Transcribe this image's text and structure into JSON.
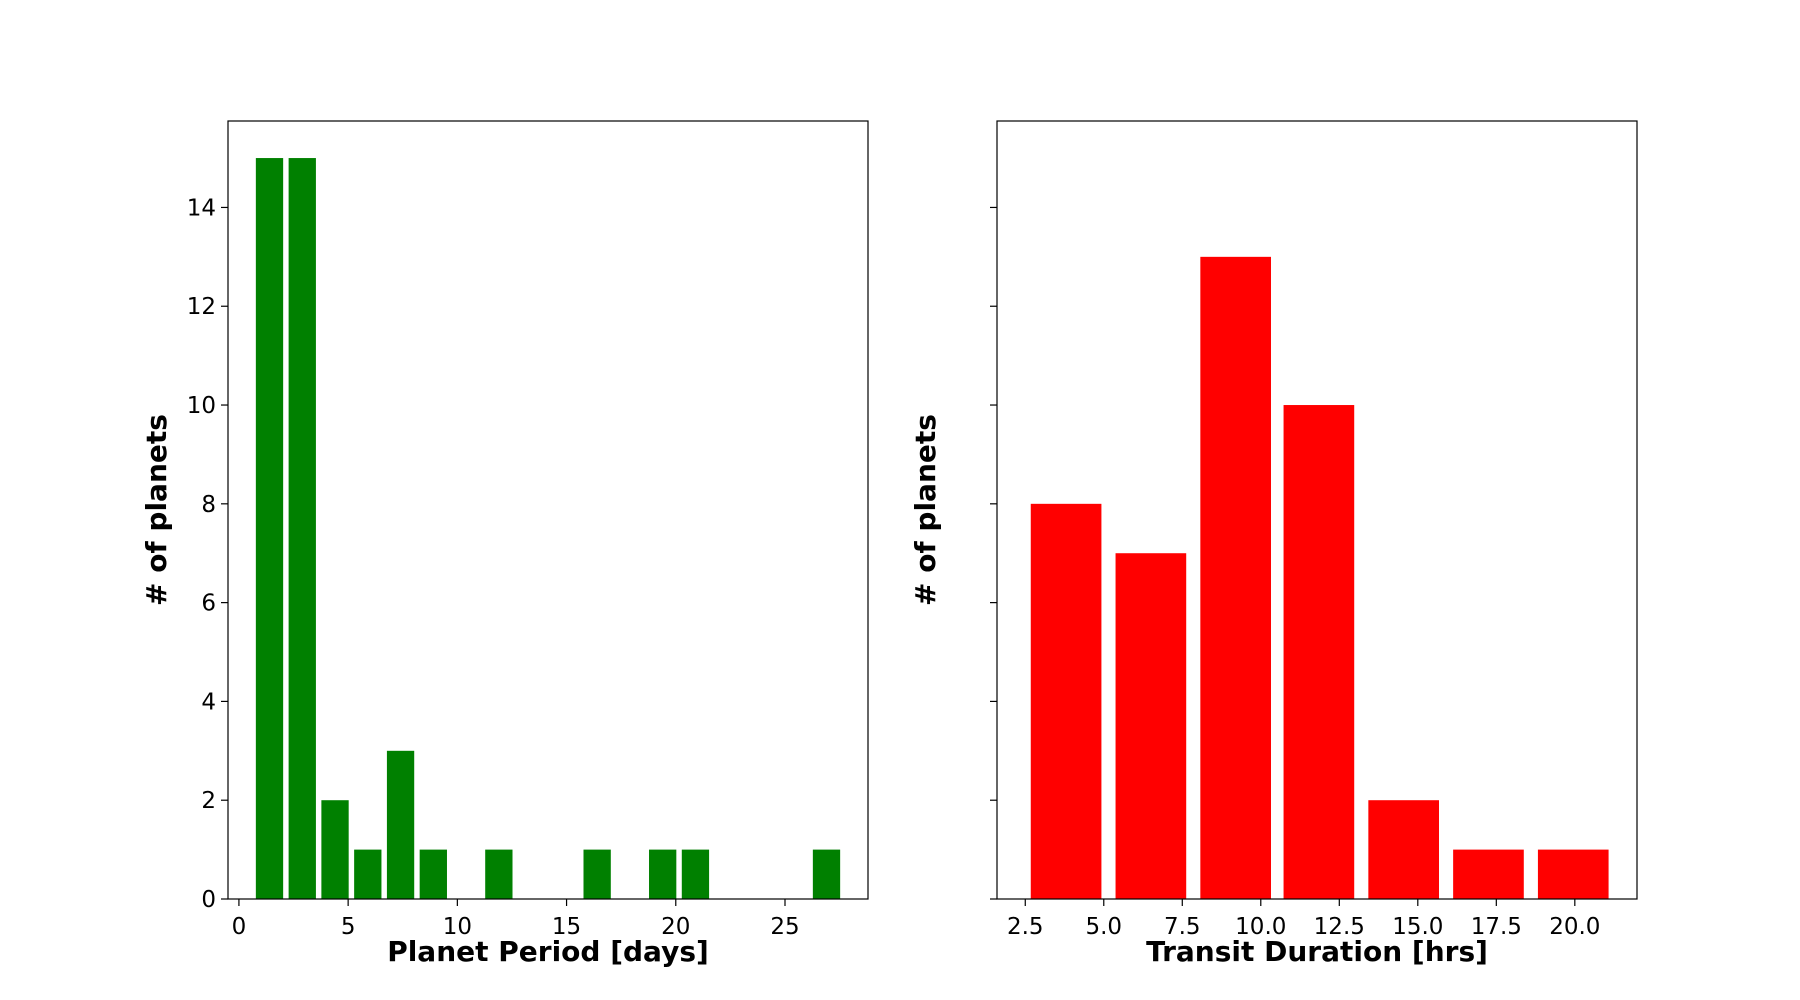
{
  "chart_data": [
    {
      "type": "bar",
      "title": "",
      "xlabel": "Planet Period [days]",
      "ylabel": "# of planets",
      "xlim": [
        -0.5,
        28.8
      ],
      "ylim": [
        0,
        15.75
      ],
      "xticks": [
        0,
        5,
        10,
        15,
        20,
        25
      ],
      "xtick_labels": [
        "0",
        "5",
        "10",
        "15",
        "20",
        "25"
      ],
      "yticks": [
        0,
        2,
        4,
        6,
        8,
        10,
        12,
        14
      ],
      "ytick_labels": [
        "0",
        "2",
        "4",
        "6",
        "8",
        "10",
        "12",
        "14"
      ],
      "show_ytick_labels": true,
      "bar_width": 1.25,
      "x": [
        1.4,
        2.9,
        4.4,
        5.9,
        7.4,
        8.9,
        11.9,
        16.4,
        19.4,
        20.9,
        26.9
      ],
      "values": [
        15,
        15,
        2,
        1,
        3,
        1,
        1,
        1,
        1,
        1,
        1
      ],
      "color": "#008000",
      "grid": false
    },
    {
      "type": "bar",
      "title": "",
      "xlabel": "Transit Duration [hrs]",
      "ylabel": "# of planets",
      "xlim": [
        1.6,
        21.98
      ],
      "ylim": [
        0,
        15.75
      ],
      "xticks": [
        2.5,
        5.0,
        7.5,
        10.0,
        12.5,
        15.0,
        17.5,
        20.0
      ],
      "xtick_labels": [
        "2.5",
        "5.0",
        "7.5",
        "10.0",
        "12.5",
        "15.0",
        "17.5",
        "20.0"
      ],
      "yticks": [
        0,
        2,
        4,
        6,
        8,
        10,
        12,
        14
      ],
      "ytick_labels": [],
      "show_ytick_labels": false,
      "bar_width": 2.25,
      "x": [
        3.8,
        6.5,
        9.2,
        11.85,
        14.55,
        17.25,
        19.95
      ],
      "values": [
        8,
        7,
        13,
        10,
        2,
        1,
        1
      ],
      "color": "#ff0000",
      "grid": false
    }
  ]
}
